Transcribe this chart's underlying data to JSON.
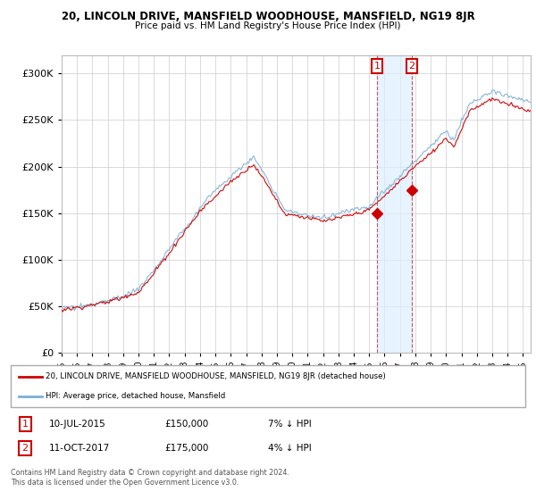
{
  "title_line1": "20, LINCOLN DRIVE, MANSFIELD WOODHOUSE, MANSFIELD, NG19 8JR",
  "title_line2": "Price paid vs. HM Land Registry's House Price Index (HPI)",
  "xlim_start": 1995.0,
  "xlim_end": 2025.5,
  "ylim": [
    0,
    320000
  ],
  "yticks": [
    0,
    50000,
    100000,
    150000,
    200000,
    250000,
    300000
  ],
  "ytick_labels": [
    "£0",
    "£50K",
    "£100K",
    "£150K",
    "£200K",
    "£250K",
    "£300K"
  ],
  "transaction1_date": 2015.52,
  "transaction1_price": 150000,
  "transaction2_date": 2017.78,
  "transaction2_price": 175000,
  "legend_line1": "20, LINCOLN DRIVE, MANSFIELD WOODHOUSE, MANSFIELD, NG19 8JR (detached house)",
  "legend_line2": "HPI: Average price, detached house, Mansfield",
  "footer_line1": "Contains HM Land Registry data © Crown copyright and database right 2024.",
  "footer_line2": "This data is licensed under the Open Government Licence v3.0.",
  "line_color_property": "#cc0000",
  "line_color_hpi": "#7ab0d4",
  "background_color": "#ffffff",
  "grid_color": "#cccccc",
  "vline_color": "#cc4444",
  "shade_color": "#ddeeff",
  "marker_color": "#cc0000"
}
